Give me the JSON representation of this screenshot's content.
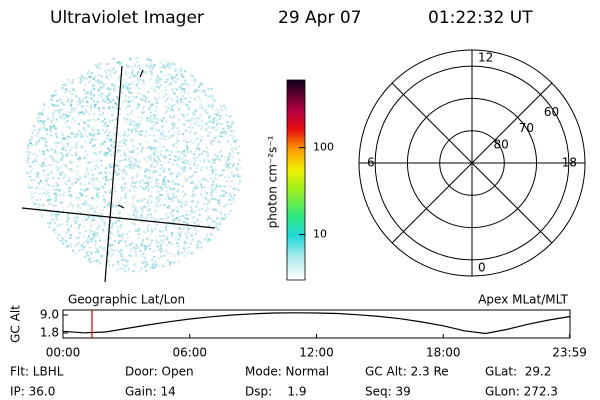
{
  "header": {
    "title": "Ultraviolet Imager",
    "date": "29 Apr 07",
    "time": "01:22:32 UT"
  },
  "colorbar": {
    "label": "photon cm⁻²s⁻¹",
    "log": true,
    "lim": [
      3,
      600
    ],
    "ticks": [
      10,
      100
    ]
  },
  "polar": {
    "rlim": [
      90,
      55
    ],
    "rticks": [
      80,
      70,
      60
    ],
    "angle_ticks": [
      12,
      18,
      6,
      0
    ]
  },
  "timeline": {
    "type": "line",
    "ylabel": "GC Alt",
    "left_label": "Geographic Lat/Lon",
    "right_label": "Apex MLat/MLT",
    "x": [
      0,
      1,
      2,
      3,
      4,
      5,
      6,
      7,
      8,
      9,
      10,
      11,
      12,
      13,
      14,
      15,
      16,
      17,
      18,
      19,
      20,
      21,
      22,
      23,
      24
    ],
    "values": [
      2.5,
      1.9,
      2.2,
      3.6,
      5.0,
      6.3,
      7.4,
      8.3,
      9.0,
      9.5,
      9.8,
      9.9,
      9.8,
      9.6,
      9.1,
      8.4,
      7.5,
      6.2,
      4.7,
      2.7,
      1.6,
      3.2,
      5.3,
      7.0,
      8.4
    ],
    "color": "#000000",
    "cursor_x": 1.37,
    "cursor_color": "#cc0000",
    "xlim": [
      0,
      24
    ],
    "ylim": [
      -0.2,
      11.0
    ],
    "xticks": [
      {
        "value": 0,
        "label": "00:00"
      },
      {
        "value": 6,
        "label": "06:00"
      },
      {
        "value": 12,
        "label": "12:00"
      },
      {
        "value": 18,
        "label": "18:00"
      },
      {
        "value": 23.98,
        "label": "23:59"
      }
    ],
    "yticks": [
      1.8,
      {
        "value": 9,
        "label": "9.0"
      }
    ]
  },
  "footer": {
    "rows": [
      [
        "Flt: LBHL",
        "Door: Open",
        "Mode: Normal",
        "GC Alt: 2.3 Re",
        "GLat:  29.2"
      ],
      [
        "IP: 36.0",
        "Gain: 14",
        "Dsp:    1.9",
        "Seq: 39",
        "GLon: 272.3"
      ]
    ]
  }
}
